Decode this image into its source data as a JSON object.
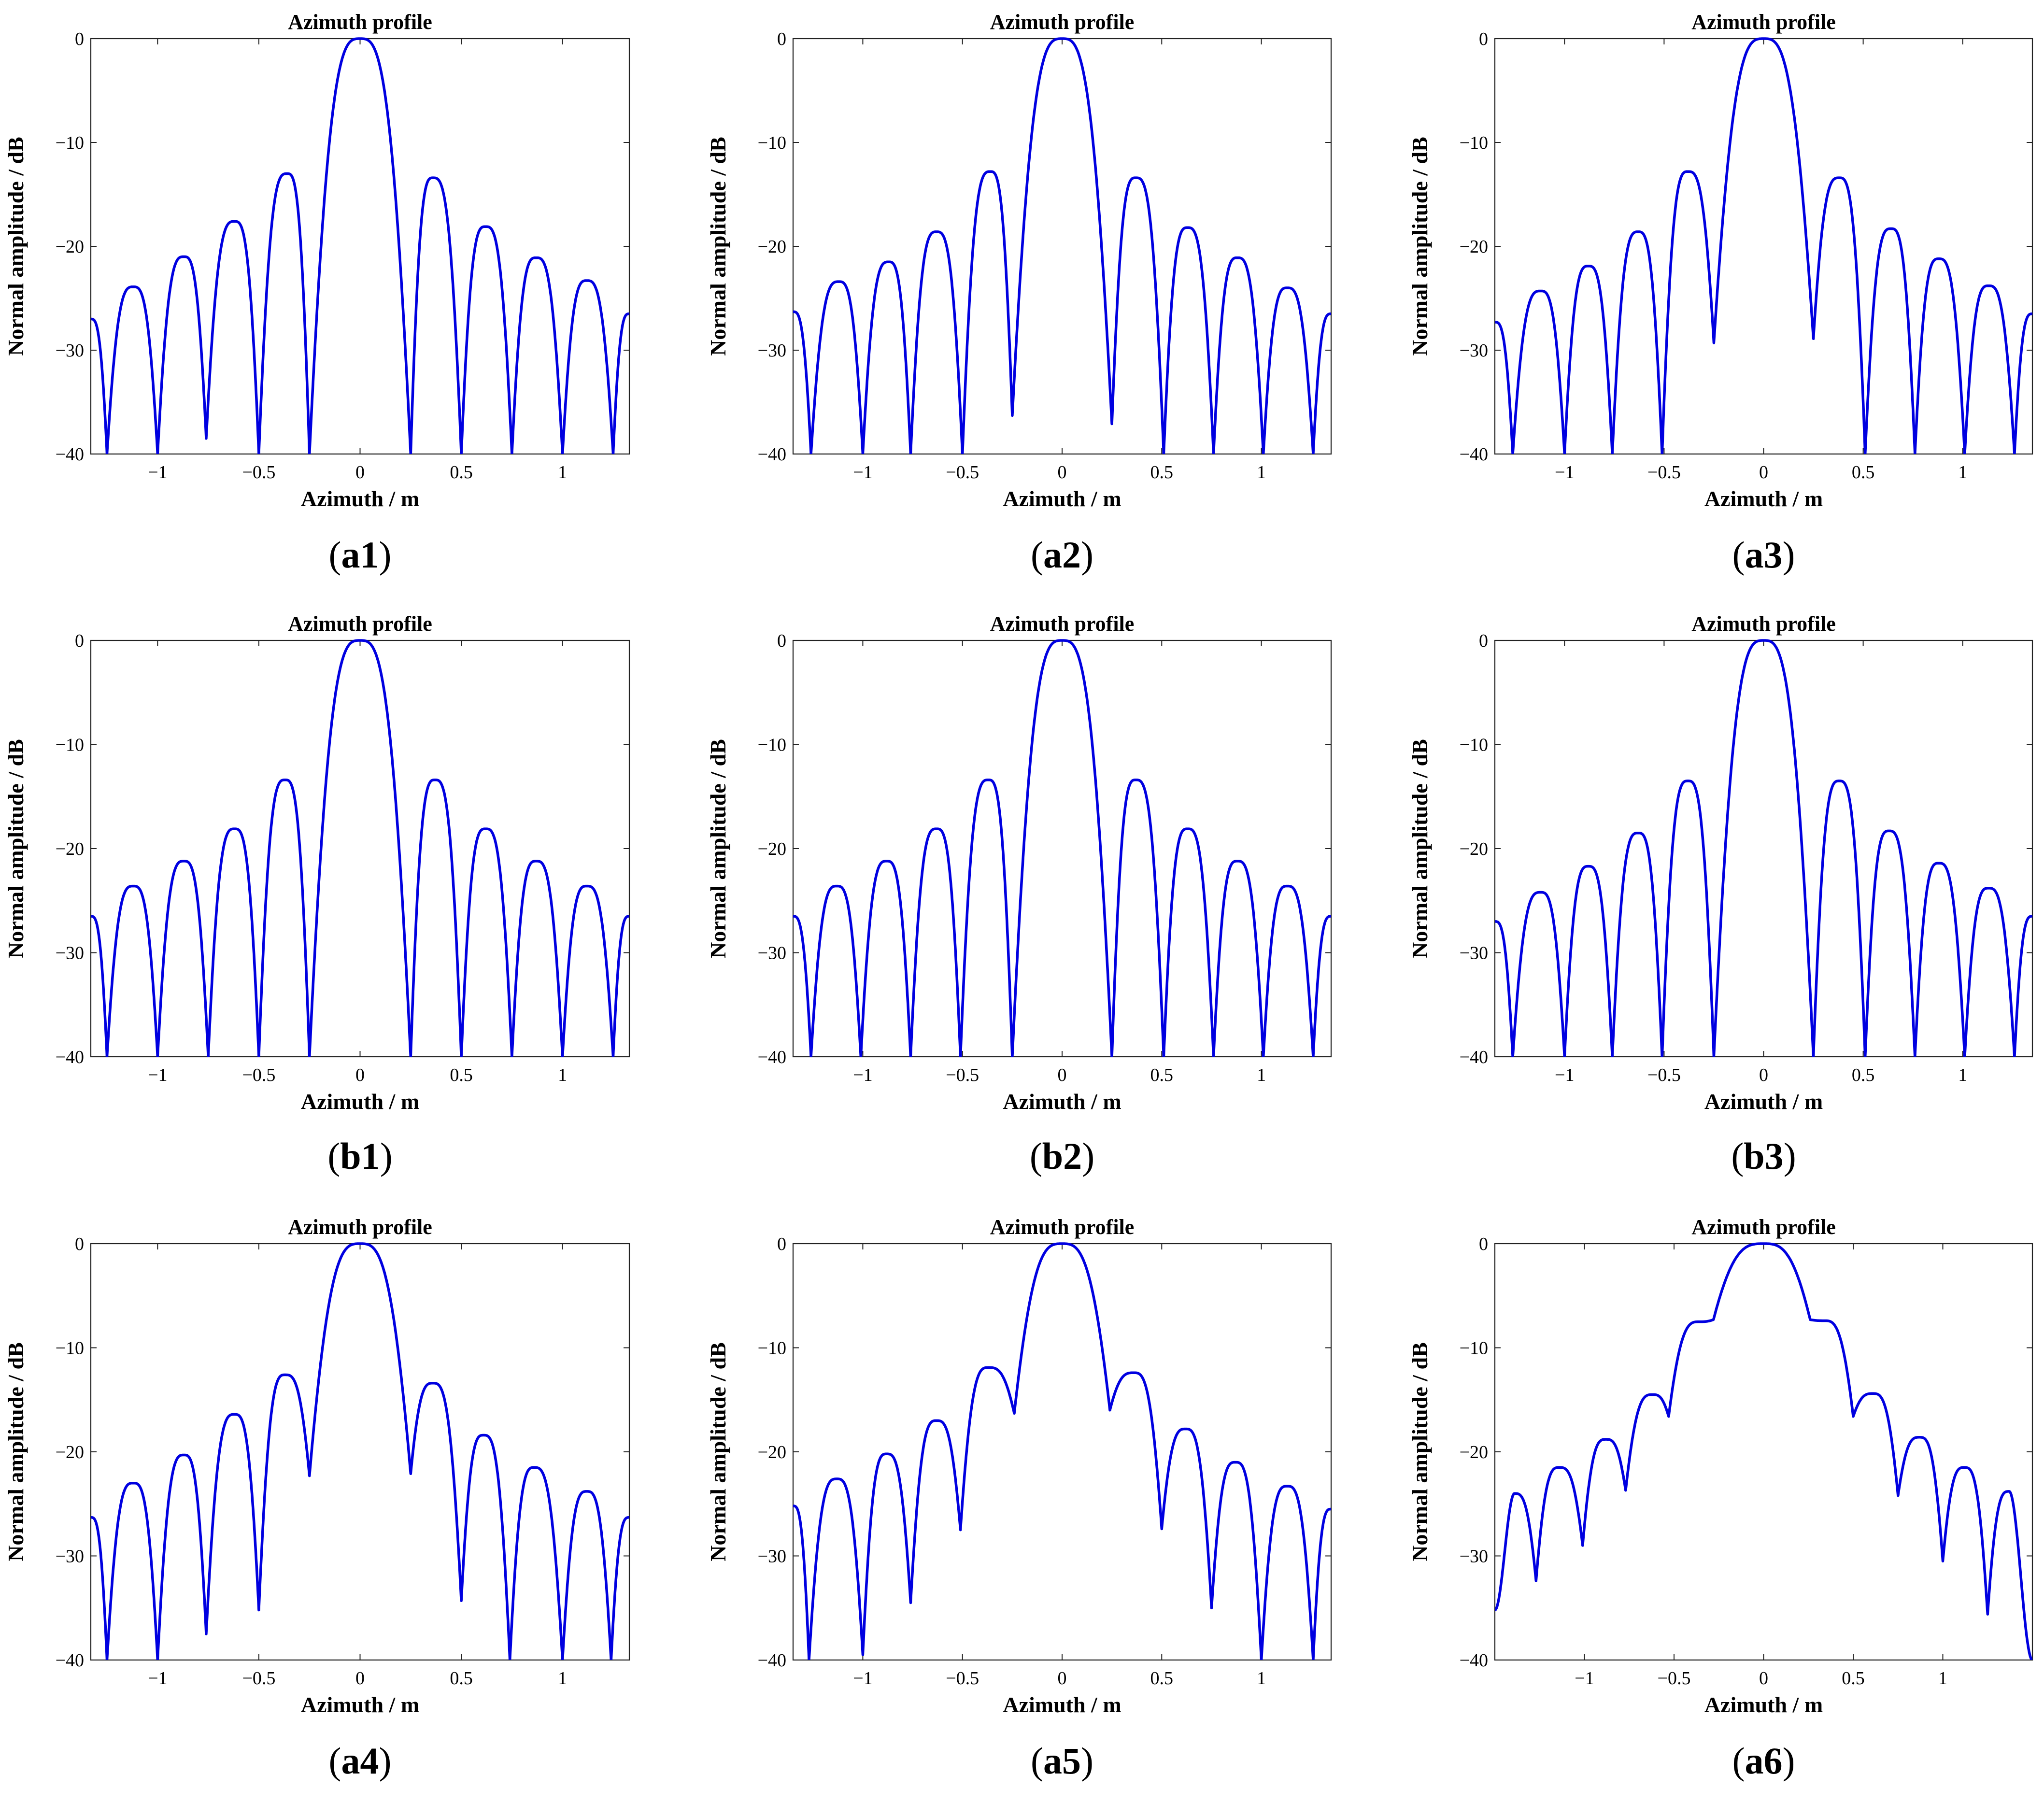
{
  "figure": {
    "panels_note": "3x3 grid of azimuth profile plots",
    "line_color": "#0000e0"
  },
  "chart_data": [
    {
      "id": "a1",
      "type": "line",
      "caption_letter": "a",
      "caption_number": "1",
      "title": "Azimuth profile",
      "xlabel": "Azimuth / m",
      "ylabel": "Normal amplitude / dB",
      "xlim": [
        -1.33,
        1.33
      ],
      "ylim": [
        -40,
        0
      ],
      "xticks": [
        -1,
        -0.5,
        0,
        0.5,
        1
      ],
      "xtick_labels": [
        "−1",
        "−0.5",
        "0",
        "0.5",
        "1"
      ],
      "yticks": [
        0,
        -10,
        -20,
        -30,
        -40
      ],
      "ytick_labels": [
        "0",
        "−10",
        "−20",
        "−30",
        "−40"
      ],
      "null_spacing_m": 0.25,
      "lobes": [
        {
          "x": -1.33,
          "y": -27
        },
        {
          "x": -1.25,
          "null": -40
        },
        {
          "x": -1.12,
          "y": -23.9
        },
        {
          "x": -1.0,
          "null": -40
        },
        {
          "x": -0.87,
          "y": -21
        },
        {
          "x": -0.76,
          "null": -38.5
        },
        {
          "x": -0.62,
          "y": -17.6
        },
        {
          "x": -0.5,
          "null": -40
        },
        {
          "x": -0.36,
          "y": -13
        },
        {
          "x": -0.25,
          "null": -40
        },
        {
          "x": 0,
          "y": 0
        },
        {
          "x": 0.25,
          "null": -40
        },
        {
          "x": 0.36,
          "y": -13.4
        },
        {
          "x": 0.5,
          "null": -40
        },
        {
          "x": 0.62,
          "y": -18.1
        },
        {
          "x": 0.75,
          "null": -40
        },
        {
          "x": 0.87,
          "y": -21.1
        },
        {
          "x": 1.0,
          "null": -40
        },
        {
          "x": 1.12,
          "y": -23.3
        },
        {
          "x": 1.25,
          "null": -40
        },
        {
          "x": 1.33,
          "y": -26.5
        }
      ]
    },
    {
      "id": "a2",
      "type": "line",
      "caption_letter": "a",
      "caption_number": "2",
      "title": "Azimuth profile",
      "xlabel": "Azimuth / m",
      "ylabel": "Normal amplitude / dB",
      "xlim": [
        -1.35,
        1.35
      ],
      "ylim": [
        -40,
        0
      ],
      "xticks": [
        -1,
        -0.5,
        0,
        0.5,
        1
      ],
      "xtick_labels": [
        "−1",
        "−0.5",
        "0",
        "0.5",
        "1"
      ],
      "yticks": [
        0,
        -10,
        -20,
        -30,
        -40
      ],
      "ytick_labels": [
        "0",
        "−10",
        "−20",
        "−30",
        "−40"
      ],
      "lobes": [
        {
          "x": -1.35,
          "y": -26.3
        },
        {
          "x": -1.26,
          "null": -40
        },
        {
          "x": -1.12,
          "y": -23.4
        },
        {
          "x": -1.0,
          "null": -40
        },
        {
          "x": -0.87,
          "y": -21.5
        },
        {
          "x": -0.76,
          "null": -40
        },
        {
          "x": -0.63,
          "y": -18.6
        },
        {
          "x": -0.5,
          "null": -40
        },
        {
          "x": -0.36,
          "y": -12.8
        },
        {
          "x": -0.25,
          "null": -36.3
        },
        {
          "x": 0,
          "y": 0
        },
        {
          "x": 0.25,
          "null": -37.1
        },
        {
          "x": 0.37,
          "y": -13.4
        },
        {
          "x": 0.51,
          "null": -40
        },
        {
          "x": 0.63,
          "y": -18.2
        },
        {
          "x": 0.76,
          "null": -40
        },
        {
          "x": 0.88,
          "y": -21.1
        },
        {
          "x": 1.01,
          "null": -40
        },
        {
          "x": 1.13,
          "y": -24
        },
        {
          "x": 1.26,
          "null": -40
        },
        {
          "x": 1.35,
          "y": -26.5
        }
      ]
    },
    {
      "id": "a3",
      "type": "line",
      "caption_letter": "a",
      "caption_number": "3",
      "title": "Azimuth profile",
      "xlabel": "Azimuth / m",
      "ylabel": "Normal amplitude / dB",
      "xlim": [
        -1.35,
        1.35
      ],
      "ylim": [
        -40,
        0
      ],
      "xticks": [
        -1,
        -0.5,
        0,
        0.5,
        1
      ],
      "xtick_labels": [
        "−1",
        "−0.5",
        "0",
        "0.5",
        "1"
      ],
      "yticks": [
        0,
        -10,
        -20,
        -30,
        -40
      ],
      "ytick_labels": [
        "0",
        "−10",
        "−20",
        "−30",
        "−40"
      ],
      "lobes": [
        {
          "x": -1.35,
          "y": -27.3
        },
        {
          "x": -1.26,
          "null": -40
        },
        {
          "x": -1.12,
          "y": -24.3
        },
        {
          "x": -1.0,
          "null": -40
        },
        {
          "x": -0.88,
          "y": -21.9
        },
        {
          "x": -0.76,
          "null": -40
        },
        {
          "x": -0.63,
          "y": -18.6
        },
        {
          "x": -0.51,
          "null": -40
        },
        {
          "x": -0.38,
          "y": -12.8
        },
        {
          "x": -0.25,
          "null": -29.3
        },
        {
          "x": 0,
          "y": 0
        },
        {
          "x": 0.25,
          "null": -28.9
        },
        {
          "x": 0.38,
          "y": -13.4
        },
        {
          "x": 0.51,
          "null": -40
        },
        {
          "x": 0.64,
          "y": -18.3
        },
        {
          "x": 0.76,
          "null": -40
        },
        {
          "x": 0.88,
          "y": -21.2
        },
        {
          "x": 1.01,
          "null": -40
        },
        {
          "x": 1.13,
          "y": -23.8
        },
        {
          "x": 1.26,
          "null": -40
        },
        {
          "x": 1.35,
          "y": -26.5
        }
      ]
    },
    {
      "id": "b1",
      "type": "line",
      "caption_letter": "b",
      "caption_number": "1",
      "title": "Azimuth profile",
      "xlabel": "Azimuth / m",
      "ylabel": "Normal amplitude / dB",
      "xlim": [
        -1.33,
        1.33
      ],
      "ylim": [
        -40,
        0
      ],
      "xticks": [
        -1,
        -0.5,
        0,
        0.5,
        1
      ],
      "xtick_labels": [
        "−1",
        "−0.5",
        "0",
        "0.5",
        "1"
      ],
      "yticks": [
        0,
        -10,
        -20,
        -30,
        -40
      ],
      "ytick_labels": [
        "0",
        "−10",
        "−20",
        "−30",
        "−40"
      ],
      "lobes": [
        {
          "x": -1.33,
          "y": -26.5
        },
        {
          "x": -1.25,
          "null": -40
        },
        {
          "x": -1.12,
          "y": -23.6
        },
        {
          "x": -1.0,
          "null": -40
        },
        {
          "x": -0.87,
          "y": -21.2
        },
        {
          "x": -0.75,
          "null": -40
        },
        {
          "x": -0.62,
          "y": -18.1
        },
        {
          "x": -0.5,
          "null": -40
        },
        {
          "x": -0.37,
          "y": -13.4
        },
        {
          "x": -0.25,
          "null": -40
        },
        {
          "x": 0,
          "y": 0
        },
        {
          "x": 0.25,
          "null": -40
        },
        {
          "x": 0.37,
          "y": -13.4
        },
        {
          "x": 0.5,
          "null": -40
        },
        {
          "x": 0.62,
          "y": -18.1
        },
        {
          "x": 0.75,
          "null": -40
        },
        {
          "x": 0.87,
          "y": -21.2
        },
        {
          "x": 1.0,
          "null": -40
        },
        {
          "x": 1.12,
          "y": -23.6
        },
        {
          "x": 1.25,
          "null": -40
        },
        {
          "x": 1.33,
          "y": -26.5
        }
      ]
    },
    {
      "id": "b2",
      "type": "line",
      "caption_letter": "b",
      "caption_number": "2",
      "title": "Azimuth profile",
      "xlabel": "Azimuth / m",
      "ylabel": "Normal amplitude / dB",
      "xlim": [
        -1.35,
        1.35
      ],
      "ylim": [
        -40,
        0
      ],
      "xticks": [
        -1,
        -0.5,
        0,
        0.5,
        1
      ],
      "xtick_labels": [
        "−1",
        "−0.5",
        "0",
        "0.5",
        "1"
      ],
      "yticks": [
        0,
        -10,
        -20,
        -30,
        -40
      ],
      "ytick_labels": [
        "0",
        "−10",
        "−20",
        "−30",
        "−40"
      ],
      "lobes": [
        {
          "x": -1.35,
          "y": -26.5
        },
        {
          "x": -1.26,
          "null": -40
        },
        {
          "x": -1.13,
          "y": -23.6
        },
        {
          "x": -1.01,
          "null": -40
        },
        {
          "x": -0.88,
          "y": -21.2
        },
        {
          "x": -0.76,
          "null": -40
        },
        {
          "x": -0.63,
          "y": -18.1
        },
        {
          "x": -0.51,
          "null": -40
        },
        {
          "x": -0.37,
          "y": -13.4
        },
        {
          "x": -0.25,
          "null": -40
        },
        {
          "x": 0,
          "y": 0
        },
        {
          "x": 0.25,
          "null": -40
        },
        {
          "x": 0.37,
          "y": -13.4
        },
        {
          "x": 0.51,
          "null": -40
        },
        {
          "x": 0.63,
          "y": -18.1
        },
        {
          "x": 0.76,
          "null": -40
        },
        {
          "x": 0.88,
          "y": -21.2
        },
        {
          "x": 1.01,
          "null": -40
        },
        {
          "x": 1.13,
          "y": -23.6
        },
        {
          "x": 1.26,
          "null": -40
        },
        {
          "x": 1.35,
          "y": -26.5
        }
      ]
    },
    {
      "id": "b3",
      "type": "line",
      "caption_letter": "b",
      "caption_number": "3",
      "title": "Azimuth profile",
      "xlabel": "Azimuth / m",
      "ylabel": "Normal amplitude / dB",
      "xlim": [
        -1.35,
        1.35
      ],
      "ylim": [
        -40,
        0
      ],
      "xticks": [
        -1,
        -0.5,
        0,
        0.5,
        1
      ],
      "xtick_labels": [
        "−1",
        "−0.5",
        "0",
        "0.5",
        "1"
      ],
      "yticks": [
        0,
        -10,
        -20,
        -30,
        -40
      ],
      "ytick_labels": [
        "0",
        "−10",
        "−20",
        "−30",
        "−40"
      ],
      "lobes": [
        {
          "x": -1.35,
          "y": -27
        },
        {
          "x": -1.26,
          "null": -40
        },
        {
          "x": -1.12,
          "y": -24.2
        },
        {
          "x": -1.0,
          "null": -40
        },
        {
          "x": -0.88,
          "y": -21.7
        },
        {
          "x": -0.76,
          "null": -40
        },
        {
          "x": -0.63,
          "y": -18.5
        },
        {
          "x": -0.51,
          "null": -40
        },
        {
          "x": -0.38,
          "y": -13.5
        },
        {
          "x": -0.25,
          "null": -40
        },
        {
          "x": 0,
          "y": 0
        },
        {
          "x": 0.25,
          "null": -40
        },
        {
          "x": 0.38,
          "y": -13.5
        },
        {
          "x": 0.51,
          "null": -40
        },
        {
          "x": 0.63,
          "y": -18.3
        },
        {
          "x": 0.76,
          "null": -40
        },
        {
          "x": 0.88,
          "y": -21.4
        },
        {
          "x": 1.01,
          "null": -40
        },
        {
          "x": 1.13,
          "y": -23.8
        },
        {
          "x": 1.26,
          "null": -40
        },
        {
          "x": 1.35,
          "y": -26.5
        }
      ]
    },
    {
      "id": "a4",
      "type": "line",
      "caption_letter": "a",
      "caption_number": "4",
      "title": "Azimuth profile",
      "xlabel": "Azimuth / m",
      "ylabel": "Normal amplitude / dB",
      "xlim": [
        -1.33,
        1.33
      ],
      "ylim": [
        -40,
        0
      ],
      "xticks": [
        -1,
        -0.5,
        0,
        0.5,
        1
      ],
      "xtick_labels": [
        "−1",
        "−0.5",
        "0",
        "0.5",
        "1"
      ],
      "yticks": [
        0,
        -10,
        -20,
        -30,
        -40
      ],
      "ytick_labels": [
        "0",
        "−10",
        "−20",
        "−30",
        "−40"
      ],
      "lobes": [
        {
          "x": -1.33,
          "y": -26.3
        },
        {
          "x": -1.25,
          "null": -40
        },
        {
          "x": -1.12,
          "y": -23
        },
        {
          "x": -1.0,
          "null": -40
        },
        {
          "x": -0.87,
          "y": -20.3
        },
        {
          "x": -0.76,
          "null": -37.5
        },
        {
          "x": -0.62,
          "y": -16.4
        },
        {
          "x": -0.5,
          "null": -35.2
        },
        {
          "x": -0.37,
          "y": -12.6
        },
        {
          "x": -0.25,
          "null": -22.3
        },
        {
          "x": 0,
          "y": 0
        },
        {
          "x": 0.25,
          "null": -22.1
        },
        {
          "x": 0.36,
          "y": -13.4
        },
        {
          "x": 0.5,
          "null": -34.3
        },
        {
          "x": 0.61,
          "y": -18.4
        },
        {
          "x": 0.74,
          "null": -40
        },
        {
          "x": 0.86,
          "y": -21.5
        },
        {
          "x": 1.0,
          "null": -40
        },
        {
          "x": 1.12,
          "y": -23.8
        },
        {
          "x": 1.24,
          "null": -40
        },
        {
          "x": 1.33,
          "y": -26.3
        }
      ]
    },
    {
      "id": "a5",
      "type": "line",
      "caption_letter": "a",
      "caption_number": "5",
      "title": "Azimuth profile",
      "xlabel": "Azimuth / m",
      "ylabel": "Normal amplitude / dB",
      "xlim": [
        -1.35,
        1.35
      ],
      "ylim": [
        -40,
        0
      ],
      "xticks": [
        -1,
        -0.5,
        0,
        0.5,
        1
      ],
      "xtick_labels": [
        "−1",
        "−0.5",
        "0",
        "0.5",
        "1"
      ],
      "yticks": [
        0,
        -10,
        -20,
        -30,
        -40
      ],
      "ytick_labels": [
        "0",
        "−10",
        "−20",
        "−30",
        "−40"
      ],
      "lobes": [
        {
          "x": -1.35,
          "y": -25.2
        },
        {
          "x": -1.27,
          "null": -40
        },
        {
          "x": -1.13,
          "y": -22.6
        },
        {
          "x": -1.0,
          "null": -39.5
        },
        {
          "x": -0.88,
          "y": -20.2
        },
        {
          "x": -0.76,
          "null": -34.5
        },
        {
          "x": -0.63,
          "y": -17
        },
        {
          "x": -0.51,
          "null": -27.5
        },
        {
          "x": -0.37,
          "y": -11.9
        },
        {
          "x": -0.24,
          "null": -16.3
        },
        {
          "x": 0,
          "y": 0
        },
        {
          "x": 0.24,
          "null": -16
        },
        {
          "x": 0.36,
          "y": -12.4
        },
        {
          "x": 0.5,
          "null": -27.4
        },
        {
          "x": 0.62,
          "y": -17.8
        },
        {
          "x": 0.75,
          "null": -35
        },
        {
          "x": 0.87,
          "y": -21
        },
        {
          "x": 1.0,
          "null": -40
        },
        {
          "x": 1.13,
          "y": -23.3
        },
        {
          "x": 1.26,
          "null": -40
        },
        {
          "x": 1.35,
          "y": -25.5
        }
      ]
    },
    {
      "id": "a6",
      "type": "line",
      "caption_letter": "a",
      "caption_number": "6",
      "title": "Azimuth profile",
      "xlabel": "Azimuth / m",
      "ylabel": "Normal amplitude / dB",
      "xlim": [
        -1.5,
        1.5
      ],
      "ylim": [
        -40,
        0
      ],
      "xticks": [
        -1,
        -0.5,
        0,
        0.5,
        1
      ],
      "xtick_labels": [
        "−1",
        "−0.5",
        "0",
        "0.5",
        "1"
      ],
      "yticks": [
        0,
        -10,
        -20,
        -30,
        -40
      ],
      "ytick_labels": [
        "0",
        "−10",
        "−20",
        "−30",
        "−40"
      ],
      "lobes": [
        {
          "x": -1.5,
          "y": -35.2
        },
        {
          "x": -1.39,
          "y": -24
        },
        {
          "x": -1.27,
          "null": -32.4
        },
        {
          "x": -1.14,
          "y": -21.5
        },
        {
          "x": -1.01,
          "null": -29
        },
        {
          "x": -0.88,
          "y": -18.8
        },
        {
          "x": -0.77,
          "null": -23.7
        },
        {
          "x": -0.62,
          "y": -14.5
        },
        {
          "x": -0.53,
          "null": -16.6
        },
        {
          "x": -0.36,
          "y": -7.5
        },
        {
          "x": -0.28,
          "null": -7.3
        },
        {
          "x": 0,
          "y": 0
        },
        {
          "x": 0.26,
          "null": -7.3
        },
        {
          "x": 0.34,
          "y": -7.4
        },
        {
          "x": 0.5,
          "null": -16.6
        },
        {
          "x": 0.61,
          "y": -14.4
        },
        {
          "x": 0.75,
          "null": -24.2
        },
        {
          "x": 0.87,
          "y": -18.6
        },
        {
          "x": 1.0,
          "null": -30.5
        },
        {
          "x": 1.12,
          "y": -21.5
        },
        {
          "x": 1.25,
          "null": -35.6
        },
        {
          "x": 1.37,
          "y": -23.8
        },
        {
          "x": 1.5,
          "y": -40
        }
      ]
    }
  ]
}
